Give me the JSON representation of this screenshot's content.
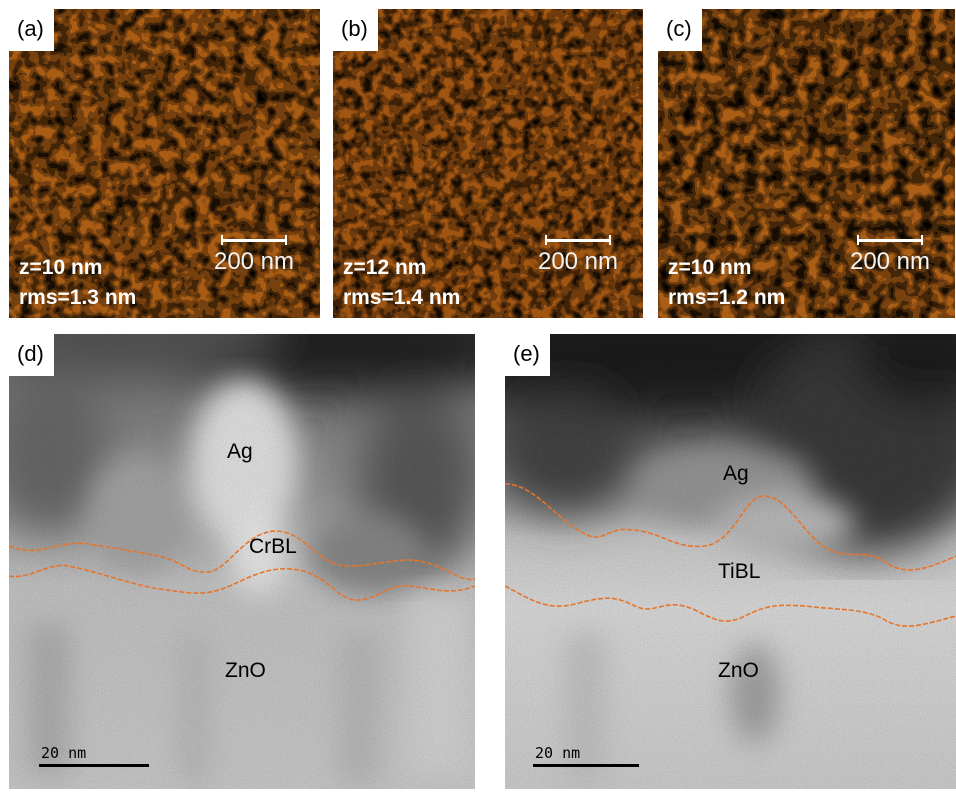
{
  "panels": {
    "a": {
      "tag": "(a)",
      "z": "z=10  nm",
      "rms": "rms=1.3 nm",
      "scale": "200 nm"
    },
    "b": {
      "tag": "(b)",
      "z": "z=12  nm",
      "rms": "rms=1.4 nm",
      "scale": "200 nm"
    },
    "c": {
      "tag": "(c)",
      "z": "z=10  nm",
      "rms": "rms=1.2 nm",
      "scale": "200 nm"
    },
    "d": {
      "tag": "(d)",
      "layer_top": "Ag",
      "layer_mid": "CrBL",
      "layer_bottom": "ZnO",
      "scale": "20  nm"
    },
    "e": {
      "tag": "(e)",
      "layer_top": "Ag",
      "layer_mid": "TiBL",
      "layer_bottom": "ZnO",
      "scale": "20  nm"
    }
  },
  "colors": {
    "afm_dark": "#5a2a06",
    "afm_mid": "#b26618",
    "afm_light": "#f0c048",
    "interface_line": "#e8742a"
  }
}
